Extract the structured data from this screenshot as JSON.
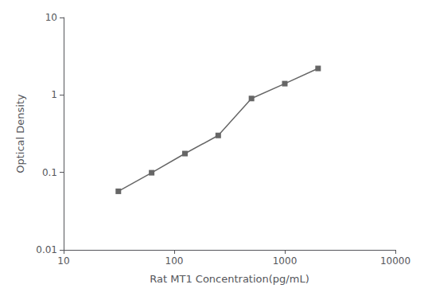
{
  "chart_data": {
    "type": "line",
    "x": [
      31.25,
      62.5,
      125,
      250,
      500,
      1000,
      2000
    ],
    "values": [
      0.057,
      0.099,
      0.175,
      0.3,
      0.9,
      1.4,
      2.2
    ],
    "xlabel": "Rat MT1 Concentration(pg/mL)",
    "ylabel": "Optical Density",
    "xlim": [
      10,
      10000
    ],
    "ylim": [
      0.01,
      10
    ],
    "xticks": [
      10,
      100,
      1000,
      10000
    ],
    "yticks": [
      0.01,
      0.1,
      1,
      10
    ],
    "log": true,
    "grid": false,
    "color": "#666666",
    "marker": "square"
  }
}
